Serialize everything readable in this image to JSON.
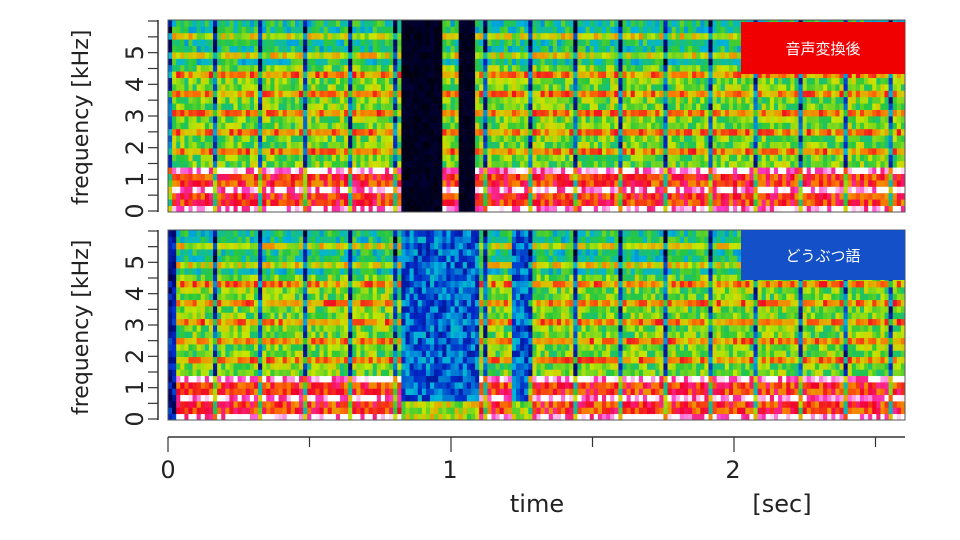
{
  "chart_data": [
    {
      "type": "heatmap",
      "title": "音声変換後",
      "badge_color": "#f00000",
      "ylabel": "frequency [kHz]",
      "yticks": [
        "0",
        "1",
        "2",
        "3",
        "4",
        "5"
      ],
      "ylim": [
        0,
        6
      ],
      "xlim": [
        0,
        2.6
      ],
      "voiced_segments": [
        [
          0.0,
          0.83
        ],
        [
          0.97,
          1.03
        ],
        [
          1.08,
          2.6
        ]
      ],
      "silent_segments": [
        [
          0.83,
          0.97
        ],
        [
          1.03,
          1.08
        ]
      ],
      "seed": 3
    },
    {
      "type": "heatmap",
      "title": "どうぶつ語",
      "badge_color": "#1451c8",
      "ylabel": "frequency [kHz]",
      "yticks": [
        "0",
        "1",
        "2",
        "3",
        "4",
        "5"
      ],
      "ylim": [
        0,
        6
      ],
      "xlim": [
        0,
        2.6
      ],
      "voiced_segments": [
        [
          0.03,
          0.83
        ],
        [
          1.1,
          1.22
        ],
        [
          1.27,
          2.6
        ]
      ],
      "noise_segments": [
        [
          0.83,
          1.1
        ],
        [
          1.22,
          1.27
        ]
      ],
      "seed": 11
    }
  ],
  "xaxis": {
    "label": "time",
    "unit": "[sec]",
    "ticks": [
      "0",
      "1",
      "2"
    ],
    "range": [
      0,
      2.6
    ]
  }
}
